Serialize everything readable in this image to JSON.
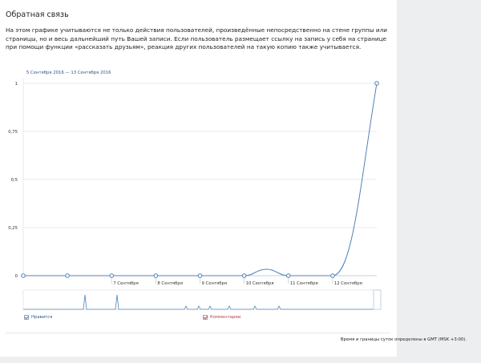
{
  "section": {
    "title": "Обратная связь",
    "description": "На этом графике учитываются не только действия пользователей, произведённые непосредственно на стене группы или страницы, но и весь дальнейший путь Вашей записи. Если пользователь размещает ссылку на запись у себя на странице при помощи функции «рассказать друзьям», реакция других пользователей на такую копию также учитывается.",
    "footnote": "Время и границы суток определены в GMT (MSK +3:00)."
  },
  "colors": {
    "likes": "#5181b8",
    "comments": "#c0414e",
    "grid": "#e7e8ec",
    "axis": "#c5d0db"
  },
  "chart_data": {
    "type": "line",
    "period_label": "5 Сентября 2016 — 13 Сентября 2016",
    "x_ticks": [
      "7 Сентября",
      "8 Сентября",
      "9 Сентября",
      "10 Сентября",
      "11 Сентября",
      "12 Сентября"
    ],
    "y_ticks": [
      "0",
      "0,25",
      "0,5",
      "0,75",
      "1"
    ],
    "ylim": [
      0,
      1
    ],
    "grid": true,
    "legend_position": "bottom",
    "series": [
      {
        "name": "Нравится",
        "color": "#5181b8",
        "points": [
          {
            "day": 5.0,
            "value": 0
          },
          {
            "day": 6.0,
            "value": 0
          },
          {
            "day": 7.0,
            "value": 0
          },
          {
            "day": 8.0,
            "value": 0
          },
          {
            "day": 9.0,
            "value": 0
          },
          {
            "day": 10.0,
            "value": 0
          },
          {
            "day": 11.0,
            "value": 0
          },
          {
            "day": 12.0,
            "value": 0
          },
          {
            "day": 13.0,
            "value": 1
          }
        ]
      },
      {
        "name": "Комментарии",
        "color": "#c0414e",
        "points": []
      }
    ]
  }
}
